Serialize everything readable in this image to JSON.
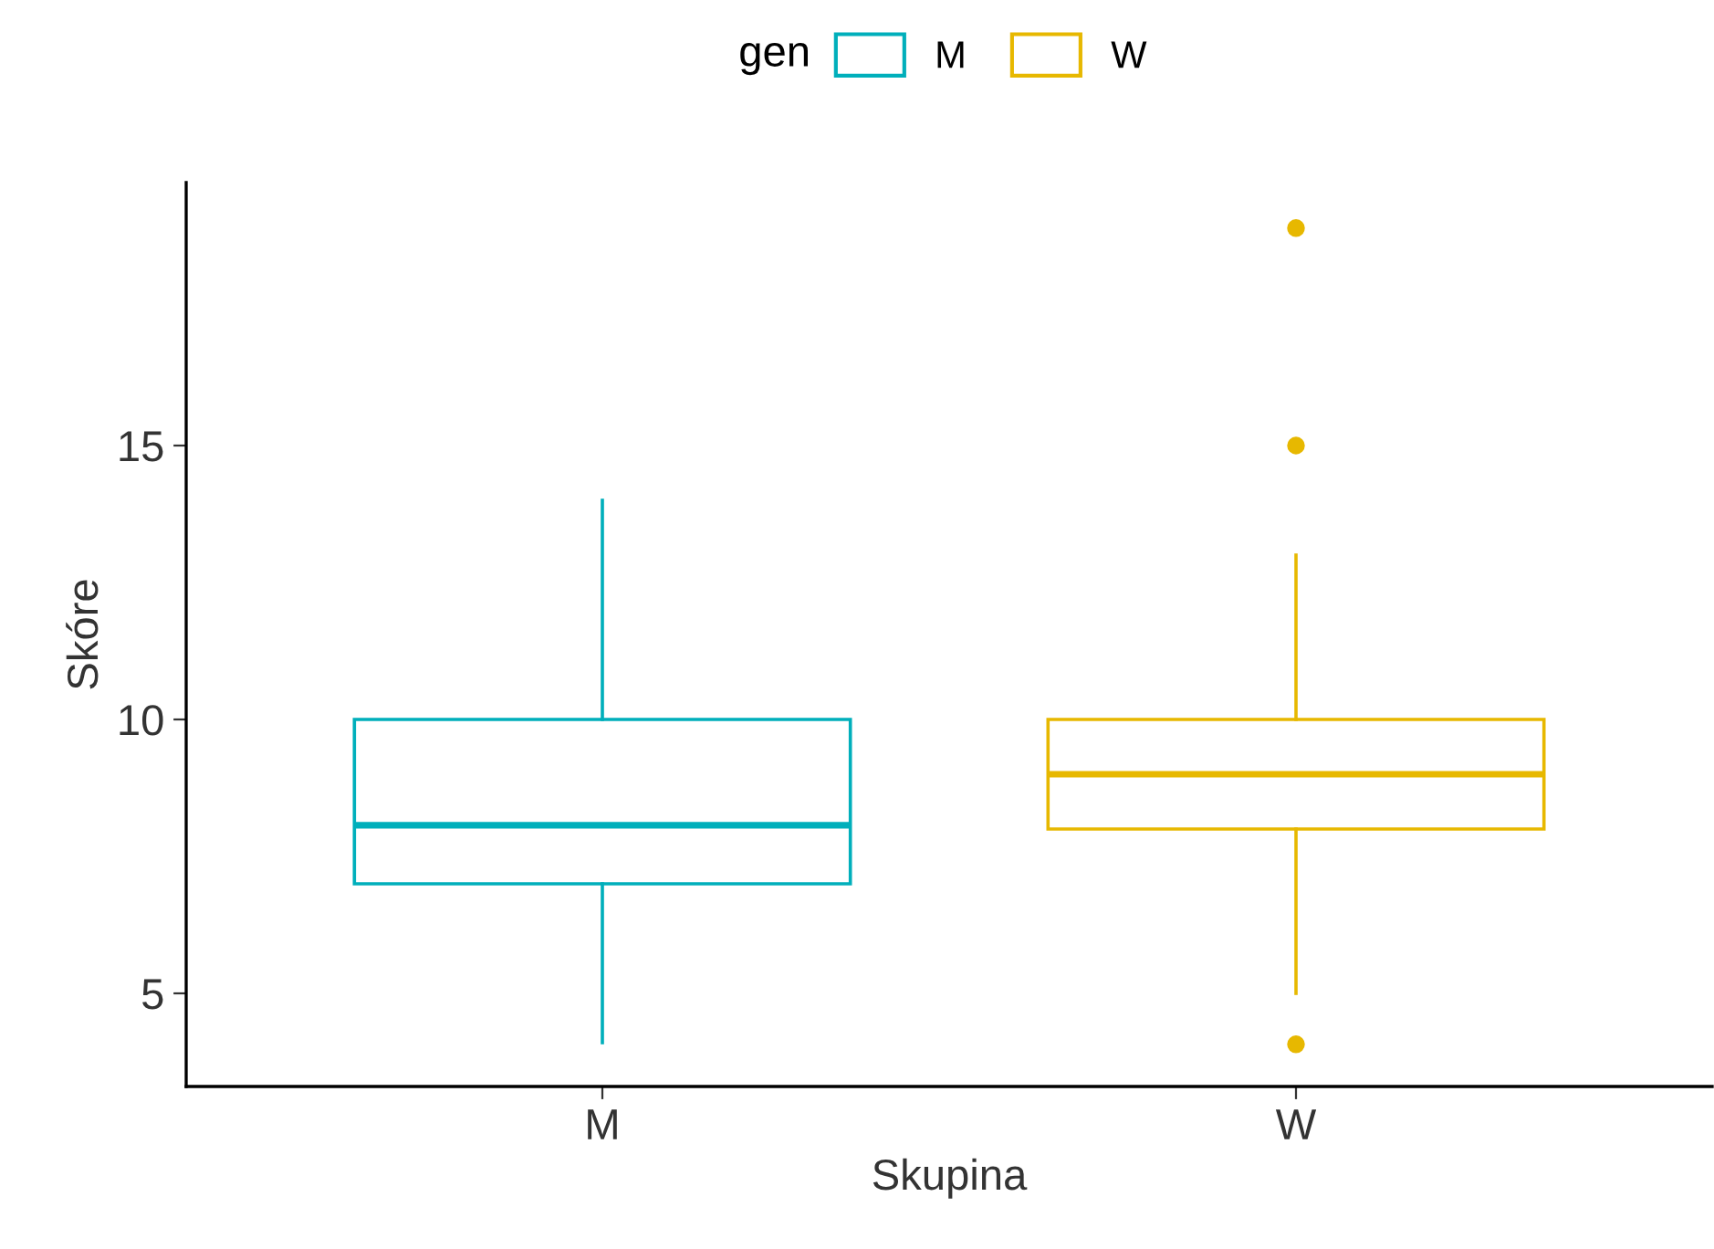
{
  "chart_data": {
    "type": "box",
    "xlabel": "Skupina",
    "ylabel": "Skóre",
    "legend_title": "gen",
    "legend": "top",
    "categories": [
      "M",
      "W"
    ],
    "series": [
      {
        "name": "M",
        "color": "#00afbb",
        "boxes": [
          {
            "low": 4.1,
            "q1": 7,
            "median": 8.07,
            "q3": 10,
            "high": 14
          },
          null
        ]
      },
      {
        "name": "W",
        "color": "#e7b800",
        "boxes": [
          null,
          {
            "low": 5,
            "q1": 8,
            "median": 9,
            "q3": 10,
            "high": 13,
            "outliers": [
              4.07,
              15,
              18.97
            ]
          }
        ]
      }
    ],
    "ylim": [
      3.3,
      19.8
    ],
    "yticks": [
      5,
      10,
      15
    ],
    "grid": false
  }
}
